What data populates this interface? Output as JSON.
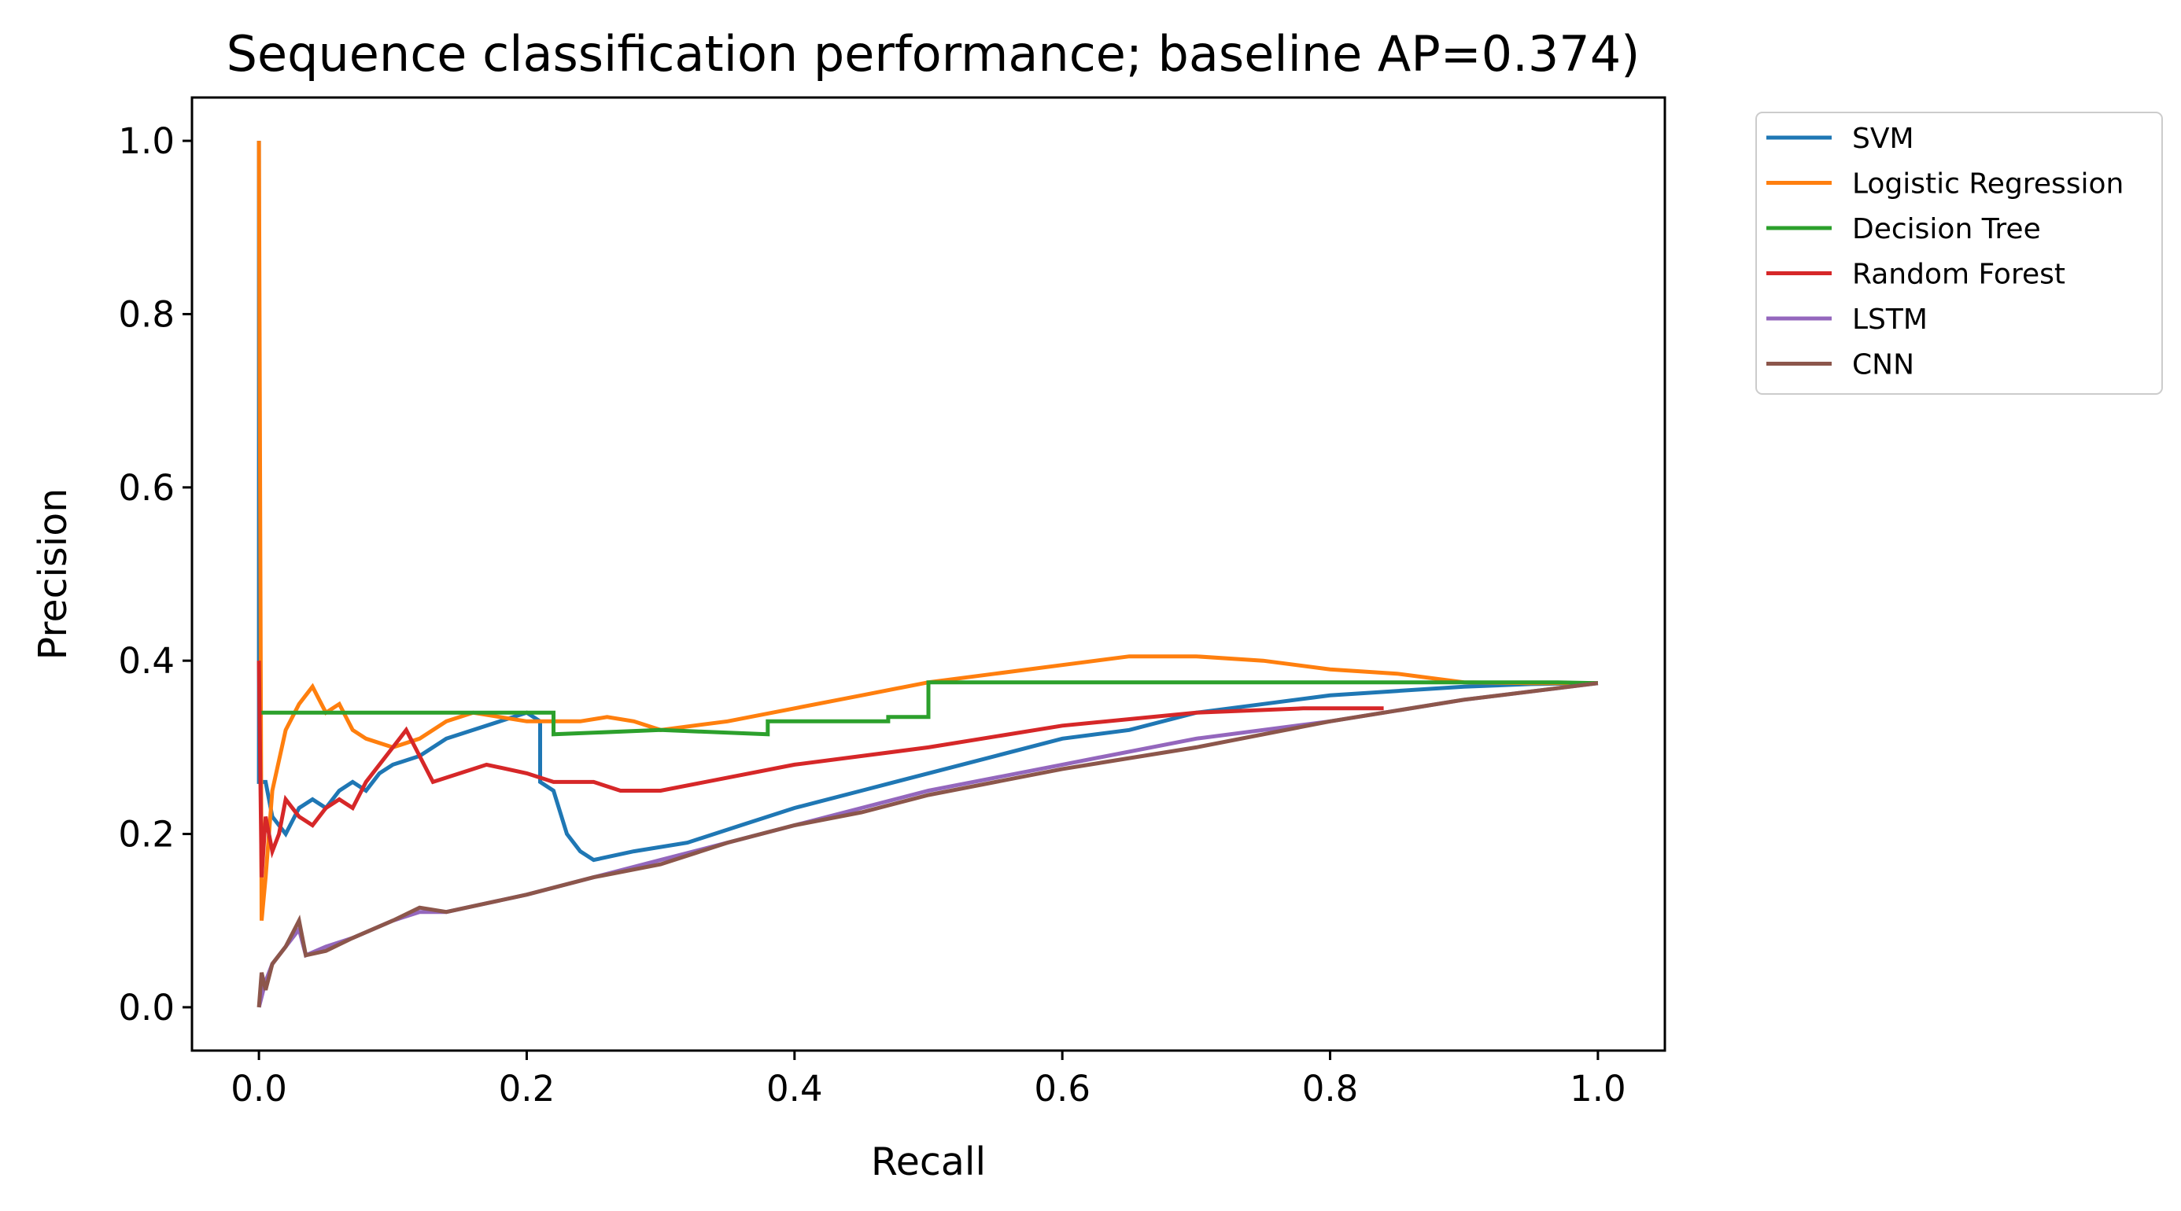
{
  "chart_data": {
    "type": "line",
    "title": "Sequence classification performance; baseline AP=0.374)",
    "xlabel": "Recall",
    "ylabel": "Precision",
    "xlim": [
      -0.05,
      1.05
    ],
    "ylim": [
      -0.05,
      1.05
    ],
    "xticks": [
      0.0,
      0.2,
      0.4,
      0.6,
      0.8,
      1.0
    ],
    "xtick_labels": [
      "0.0",
      "0.2",
      "0.4",
      "0.6",
      "0.8",
      "1.0"
    ],
    "yticks": [
      0.0,
      0.2,
      0.4,
      0.6,
      0.8,
      1.0
    ],
    "ytick_labels": [
      "0.0",
      "0.2",
      "0.4",
      "0.6",
      "0.8",
      "1.0"
    ],
    "grid": false,
    "legend": "outside right, top",
    "series": [
      {
        "name": "SVM",
        "color": "#1f77b4",
        "points": [
          [
            0.0,
            1.0
          ],
          [
            0.0,
            0.26
          ],
          [
            0.005,
            0.26
          ],
          [
            0.01,
            0.22
          ],
          [
            0.02,
            0.2
          ],
          [
            0.03,
            0.23
          ],
          [
            0.04,
            0.24
          ],
          [
            0.05,
            0.23
          ],
          [
            0.06,
            0.25
          ],
          [
            0.07,
            0.26
          ],
          [
            0.08,
            0.25
          ],
          [
            0.09,
            0.27
          ],
          [
            0.1,
            0.28
          ],
          [
            0.12,
            0.29
          ],
          [
            0.14,
            0.31
          ],
          [
            0.16,
            0.32
          ],
          [
            0.18,
            0.33
          ],
          [
            0.2,
            0.34
          ],
          [
            0.21,
            0.33
          ],
          [
            0.21,
            0.26
          ],
          [
            0.22,
            0.25
          ],
          [
            0.23,
            0.2
          ],
          [
            0.24,
            0.18
          ],
          [
            0.25,
            0.17
          ],
          [
            0.28,
            0.18
          ],
          [
            0.32,
            0.19
          ],
          [
            0.36,
            0.21
          ],
          [
            0.4,
            0.23
          ],
          [
            0.45,
            0.25
          ],
          [
            0.5,
            0.27
          ],
          [
            0.55,
            0.29
          ],
          [
            0.6,
            0.31
          ],
          [
            0.65,
            0.32
          ],
          [
            0.7,
            0.34
          ],
          [
            0.75,
            0.35
          ],
          [
            0.8,
            0.36
          ],
          [
            0.85,
            0.365
          ],
          [
            0.9,
            0.37
          ],
          [
            0.95,
            0.373
          ],
          [
            1.0,
            0.374
          ]
        ]
      },
      {
        "name": "Logistic Regression",
        "color": "#ff7f0e",
        "points": [
          [
            0.0,
            1.0
          ],
          [
            0.002,
            0.1
          ],
          [
            0.005,
            0.15
          ],
          [
            0.01,
            0.25
          ],
          [
            0.02,
            0.32
          ],
          [
            0.03,
            0.35
          ],
          [
            0.04,
            0.37
          ],
          [
            0.05,
            0.34
          ],
          [
            0.06,
            0.35
          ],
          [
            0.07,
            0.32
          ],
          [
            0.08,
            0.31
          ],
          [
            0.1,
            0.3
          ],
          [
            0.12,
            0.31
          ],
          [
            0.14,
            0.33
          ],
          [
            0.16,
            0.34
          ],
          [
            0.18,
            0.335
          ],
          [
            0.2,
            0.33
          ],
          [
            0.22,
            0.33
          ],
          [
            0.24,
            0.33
          ],
          [
            0.26,
            0.335
          ],
          [
            0.28,
            0.33
          ],
          [
            0.3,
            0.32
          ],
          [
            0.35,
            0.33
          ],
          [
            0.4,
            0.345
          ],
          [
            0.45,
            0.36
          ],
          [
            0.5,
            0.375
          ],
          [
            0.55,
            0.385
          ],
          [
            0.6,
            0.395
          ],
          [
            0.65,
            0.405
          ],
          [
            0.7,
            0.405
          ],
          [
            0.75,
            0.4
          ],
          [
            0.8,
            0.39
          ],
          [
            0.85,
            0.385
          ],
          [
            0.9,
            0.375
          ],
          [
            0.95,
            0.374
          ],
          [
            1.0,
            0.374
          ]
        ]
      },
      {
        "name": "Decision Tree",
        "color": "#2ca02c",
        "points": [
          [
            0.0,
            0.34
          ],
          [
            0.22,
            0.34
          ],
          [
            0.22,
            0.315
          ],
          [
            0.3,
            0.32
          ],
          [
            0.38,
            0.315
          ],
          [
            0.38,
            0.33
          ],
          [
            0.47,
            0.33
          ],
          [
            0.47,
            0.335
          ],
          [
            0.5,
            0.335
          ],
          [
            0.5,
            0.375
          ],
          [
            0.97,
            0.375
          ],
          [
            1.0,
            0.374
          ]
        ]
      },
      {
        "name": "Random Forest",
        "color": "#d62728",
        "points": [
          [
            0.0,
            0.4
          ],
          [
            0.002,
            0.15
          ],
          [
            0.005,
            0.22
          ],
          [
            0.01,
            0.18
          ],
          [
            0.015,
            0.2
          ],
          [
            0.02,
            0.24
          ],
          [
            0.03,
            0.22
          ],
          [
            0.04,
            0.21
          ],
          [
            0.05,
            0.23
          ],
          [
            0.06,
            0.24
          ],
          [
            0.07,
            0.23
          ],
          [
            0.08,
            0.26
          ],
          [
            0.1,
            0.3
          ],
          [
            0.11,
            0.32
          ],
          [
            0.12,
            0.29
          ],
          [
            0.13,
            0.26
          ],
          [
            0.15,
            0.27
          ],
          [
            0.17,
            0.28
          ],
          [
            0.2,
            0.27
          ],
          [
            0.22,
            0.26
          ],
          [
            0.25,
            0.26
          ],
          [
            0.27,
            0.25
          ],
          [
            0.3,
            0.25
          ],
          [
            0.35,
            0.265
          ],
          [
            0.4,
            0.28
          ],
          [
            0.5,
            0.3
          ],
          [
            0.6,
            0.325
          ],
          [
            0.7,
            0.34
          ],
          [
            0.78,
            0.345
          ],
          [
            0.84,
            0.345
          ]
        ]
      },
      {
        "name": "LSTM",
        "color": "#9467bd",
        "points": [
          [
            0.0,
            0.0
          ],
          [
            0.005,
            0.03
          ],
          [
            0.01,
            0.05
          ],
          [
            0.02,
            0.07
          ],
          [
            0.03,
            0.09
          ],
          [
            0.035,
            0.06
          ],
          [
            0.05,
            0.07
          ],
          [
            0.07,
            0.08
          ],
          [
            0.1,
            0.1
          ],
          [
            0.12,
            0.11
          ],
          [
            0.14,
            0.11
          ],
          [
            0.17,
            0.12
          ],
          [
            0.2,
            0.13
          ],
          [
            0.25,
            0.15
          ],
          [
            0.3,
            0.17
          ],
          [
            0.35,
            0.19
          ],
          [
            0.4,
            0.21
          ],
          [
            0.45,
            0.23
          ],
          [
            0.5,
            0.25
          ],
          [
            0.6,
            0.28
          ],
          [
            0.7,
            0.31
          ],
          [
            0.8,
            0.33
          ],
          [
            0.9,
            0.355
          ],
          [
            1.0,
            0.374
          ]
        ]
      },
      {
        "name": "CNN",
        "color": "#8c564b",
        "points": [
          [
            0.0,
            0.0
          ],
          [
            0.002,
            0.04
          ],
          [
            0.005,
            0.02
          ],
          [
            0.01,
            0.05
          ],
          [
            0.02,
            0.07
          ],
          [
            0.03,
            0.1
          ],
          [
            0.035,
            0.06
          ],
          [
            0.05,
            0.065
          ],
          [
            0.07,
            0.08
          ],
          [
            0.1,
            0.1
          ],
          [
            0.12,
            0.115
          ],
          [
            0.14,
            0.11
          ],
          [
            0.17,
            0.12
          ],
          [
            0.2,
            0.13
          ],
          [
            0.25,
            0.15
          ],
          [
            0.3,
            0.165
          ],
          [
            0.35,
            0.19
          ],
          [
            0.4,
            0.21
          ],
          [
            0.45,
            0.225
          ],
          [
            0.5,
            0.245
          ],
          [
            0.6,
            0.275
          ],
          [
            0.7,
            0.3
          ],
          [
            0.8,
            0.33
          ],
          [
            0.9,
            0.355
          ],
          [
            1.0,
            0.374
          ]
        ]
      }
    ]
  }
}
